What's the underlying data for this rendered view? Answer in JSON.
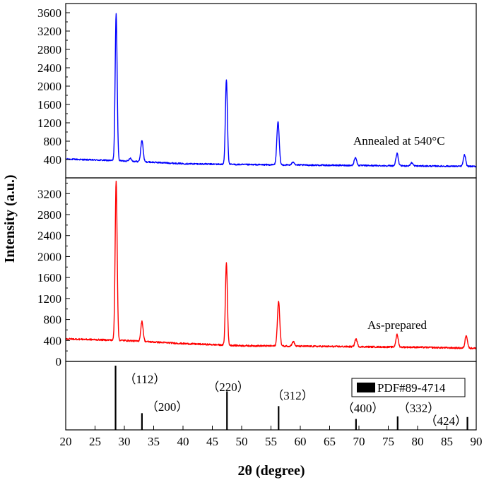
{
  "chart_data": {
    "type": "line",
    "x_axis": {
      "label": "2θ (degree)",
      "range": [
        20,
        90
      ],
      "ticks": [
        20,
        25,
        30,
        35,
        40,
        45,
        50,
        55,
        60,
        65,
        70,
        75,
        80,
        85,
        90
      ],
      "tick_labels": [
        "20",
        "25",
        "30",
        "35",
        "40",
        "45",
        "50",
        "55",
        "60",
        "65",
        "70",
        "75",
        "80",
        "85",
        "90"
      ]
    },
    "y_label": "Intensity (a.u.)",
    "panels": [
      {
        "label": "Annealed at 540°C",
        "color": "#0000ff",
        "y_range": [
          0,
          3800
        ],
        "y_ticks": [
          400,
          800,
          1200,
          1600,
          2000,
          2400,
          2800,
          3200,
          3600
        ],
        "y_tick_labels": [
          "400",
          "800",
          "1200",
          "1600",
          "2000",
          "2400",
          "2800",
          "3200",
          "3600"
        ],
        "baseline": [
          [
            20,
            410
          ],
          [
            30,
            370
          ],
          [
            40,
            310
          ],
          [
            50,
            290
          ],
          [
            60,
            280
          ],
          [
            70,
            270
          ],
          [
            80,
            260
          ],
          [
            90,
            250
          ]
        ],
        "peaks": [
          {
            "x": 28.6,
            "y": 3570
          },
          {
            "x": 31.0,
            "y": 430
          },
          {
            "x": 33.0,
            "y": 820
          },
          {
            "x": 47.4,
            "y": 2150
          },
          {
            "x": 56.2,
            "y": 1220
          },
          {
            "x": 58.8,
            "y": 350
          },
          {
            "x": 69.4,
            "y": 450
          },
          {
            "x": 76.5,
            "y": 530
          },
          {
            "x": 79.0,
            "y": 330
          },
          {
            "x": 88.0,
            "y": 500
          }
        ]
      },
      {
        "label": "As-prepared",
        "color": "#ff0000",
        "y_range": [
          0,
          3500
        ],
        "y_ticks": [
          0,
          400,
          800,
          1200,
          1600,
          2000,
          2400,
          2800,
          3200
        ],
        "y_tick_labels": [
          "0",
          "400",
          "800",
          "1200",
          "1600",
          "2000",
          "2400",
          "2800",
          "3200"
        ],
        "baseline": [
          [
            20,
            430
          ],
          [
            30,
            400
          ],
          [
            40,
            340
          ],
          [
            50,
            300
          ],
          [
            60,
            290
          ],
          [
            70,
            280
          ],
          [
            80,
            270
          ],
          [
            90,
            250
          ]
        ],
        "peaks": [
          {
            "x": 28.6,
            "y": 3450
          },
          {
            "x": 33.0,
            "y": 760
          },
          {
            "x": 47.4,
            "y": 1880
          },
          {
            "x": 56.3,
            "y": 1140
          },
          {
            "x": 58.8,
            "y": 380
          },
          {
            "x": 69.5,
            "y": 430
          },
          {
            "x": 76.5,
            "y": 510
          },
          {
            "x": 88.3,
            "y": 500
          }
        ]
      }
    ],
    "reference": {
      "legend": "PDF#89-4714",
      "lines": [
        {
          "x": 28.5,
          "height": 1.0,
          "hkl": "（112）"
        },
        {
          "x": 33.0,
          "height": 0.26,
          "hkl": "（200）"
        },
        {
          "x": 47.5,
          "height": 0.6,
          "hkl": "（220）"
        },
        {
          "x": 56.3,
          "height": 0.37,
          "hkl": "（312）"
        },
        {
          "x": 69.5,
          "height": 0.17,
          "hkl": "（400）"
        },
        {
          "x": 76.6,
          "height": 0.21,
          "hkl": "（332）"
        },
        {
          "x": 88.5,
          "height": 0.2,
          "hkl": "（424）"
        }
      ]
    }
  }
}
